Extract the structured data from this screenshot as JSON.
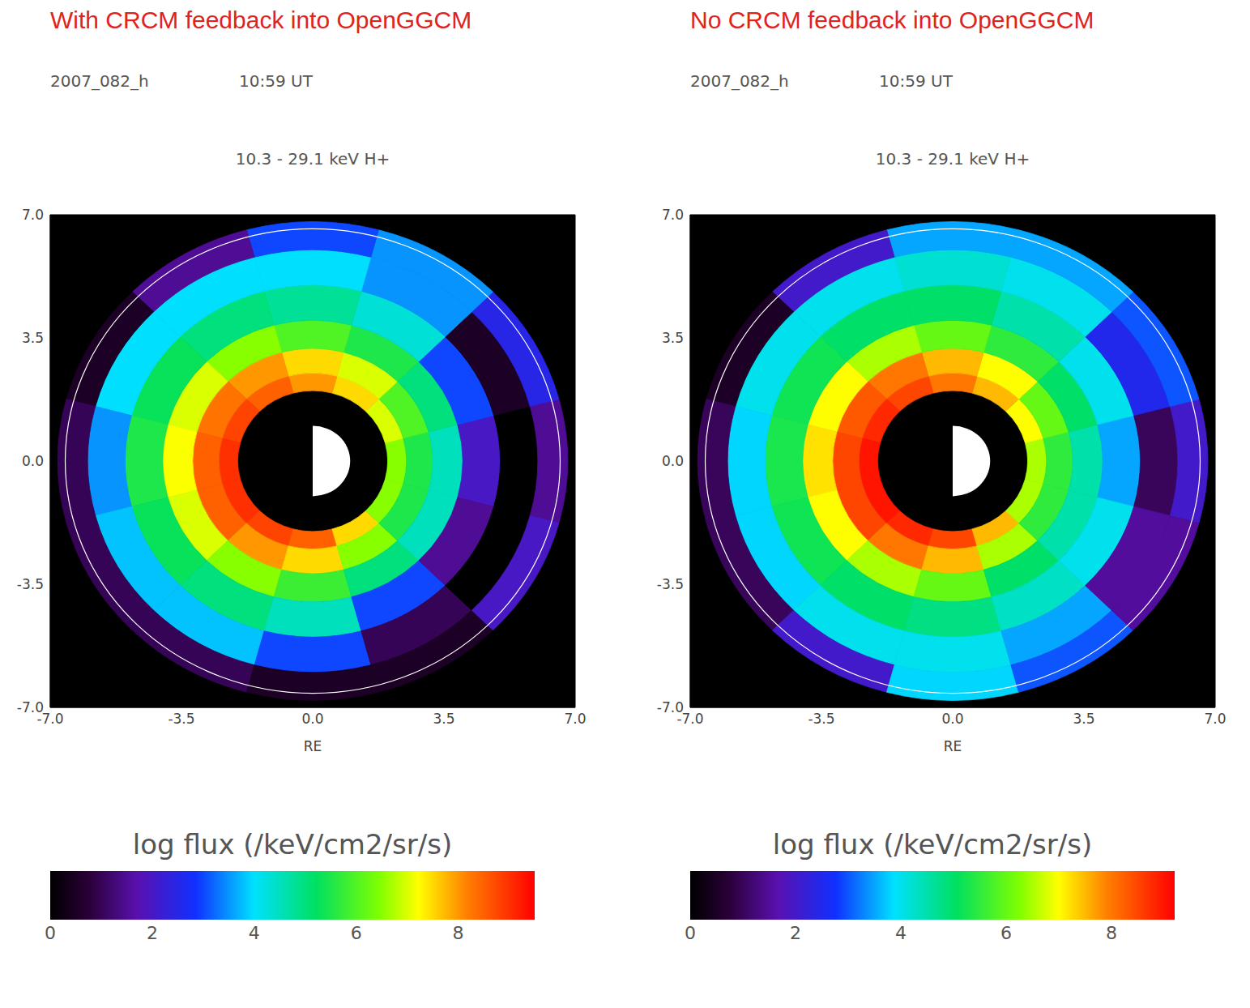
{
  "chart_data": [
    {
      "type": "heatmap",
      "title": "With CRCM feedback into OpenGGCM",
      "annotations": [
        "2007_082_h",
        "10:59 UT",
        "10.3 - 29.1 keV H+"
      ],
      "x_label": "RE",
      "xlim": [
        -7,
        7
      ],
      "ylim": [
        -7,
        7
      ],
      "xticks": [
        {
          "value": -7,
          "label": "-7.0"
        },
        {
          "value": -3.5,
          "label": "-3.5"
        },
        {
          "value": 0,
          "label": "0.0"
        },
        {
          "value": 3.5,
          "label": "3.5"
        },
        {
          "value": 7,
          "label": "7.0"
        }
      ],
      "yticks": [
        {
          "value": -7,
          "label": "-7.0"
        },
        {
          "value": -3.5,
          "label": "-3.5"
        },
        {
          "value": 0,
          "label": "0.0"
        },
        {
          "value": 3.5,
          "label": "3.5"
        },
        {
          "value": 7,
          "label": "7.0"
        }
      ],
      "r_edges": [
        2,
        2.5,
        3.2,
        4,
        5,
        6,
        6.8
      ],
      "theta_edges": [
        -15,
        15,
        45,
        75,
        105,
        135,
        165,
        195,
        225,
        255,
        285,
        315,
        345
      ],
      "cells": [
        [
          6.5,
          7,
          7.5,
          8,
          8.5,
          8.8,
          9,
          9,
          8.8,
          8.5,
          7.5,
          6.5
        ],
        [
          5.5,
          6,
          7,
          7.5,
          8,
          8.3,
          8.5,
          8.5,
          8,
          7.5,
          6.5,
          5.5
        ],
        [
          4.5,
          5,
          5.5,
          6,
          6.5,
          7,
          7.2,
          7,
          6.5,
          5.8,
          5,
          4.5
        ],
        [
          2,
          3,
          4.3,
          4.8,
          5,
          5.3,
          5.5,
          5.3,
          5,
          4.5,
          3,
          1.5
        ],
        [
          0,
          0.5,
          3.5,
          4,
          4,
          4,
          3.5,
          3.8,
          3.8,
          3,
          1,
          0
        ],
        [
          1.5,
          2.5,
          3.5,
          3,
          1.5,
          0.5,
          1,
          1,
          1,
          0.5,
          0.5,
          2
        ]
      ],
      "circle_radius": 6.6,
      "colorbar": {
        "label": "log flux (/keV/cm2/sr/s)",
        "range": [
          0,
          9.5
        ],
        "ticks": [
          0,
          2,
          4,
          6,
          8
        ]
      }
    },
    {
      "type": "heatmap",
      "title": "No CRCM feedback into OpenGGCM",
      "annotations": [
        "2007_082_h",
        "10:59 UT",
        "10.3 - 29.1 keV H+"
      ],
      "x_label": "RE",
      "xlim": [
        -7,
        7
      ],
      "ylim": [
        -7,
        7
      ],
      "xticks": [
        {
          "value": -7,
          "label": "-7.0"
        },
        {
          "value": -3.5,
          "label": "-3.5"
        },
        {
          "value": 0,
          "label": "0.0"
        },
        {
          "value": 3.5,
          "label": "3.5"
        },
        {
          "value": 7,
          "label": "7.0"
        }
      ],
      "yticks": [
        {
          "value": -7,
          "label": "-7.0"
        },
        {
          "value": -3.5,
          "label": "-3.5"
        },
        {
          "value": 0,
          "label": "0.0"
        },
        {
          "value": 3.5,
          "label": "3.5"
        },
        {
          "value": 7,
          "label": "7.0"
        }
      ],
      "r_edges": [
        2,
        2.5,
        3.2,
        4,
        5,
        6,
        6.8
      ],
      "theta_edges": [
        -15,
        15,
        45,
        75,
        105,
        135,
        165,
        195,
        225,
        255,
        285,
        315,
        345
      ],
      "cells": [
        [
          6.5,
          7,
          7.5,
          8,
          8.5,
          8.8,
          9,
          9,
          8.8,
          8.5,
          7.5,
          6.5
        ],
        [
          5.5,
          6,
          7,
          7.5,
          8,
          8.3,
          8.5,
          8.5,
          8,
          7.5,
          6.5,
          5.5
        ],
        [
          4.5,
          5,
          5.5,
          6,
          6.5,
          7,
          7.2,
          7,
          6.5,
          6,
          5,
          4.5
        ],
        [
          3.5,
          4,
          4.5,
          5,
          5,
          5.2,
          5.3,
          5.2,
          5,
          4.8,
          4.3,
          4
        ],
        [
          1,
          2.5,
          4,
          4.2,
          4,
          4,
          3.8,
          3.8,
          4,
          4,
          3.5,
          1.5
        ],
        [
          2,
          3,
          3.5,
          3.5,
          2,
          0.5,
          1,
          1,
          2,
          3.8,
          3,
          1.5
        ]
      ],
      "circle_radius": 6.6,
      "colorbar": {
        "label": "log flux (/keV/cm2/sr/s)",
        "range": [
          0,
          9.2
        ],
        "ticks": [
          0,
          2,
          4,
          6,
          8
        ]
      }
    }
  ]
}
